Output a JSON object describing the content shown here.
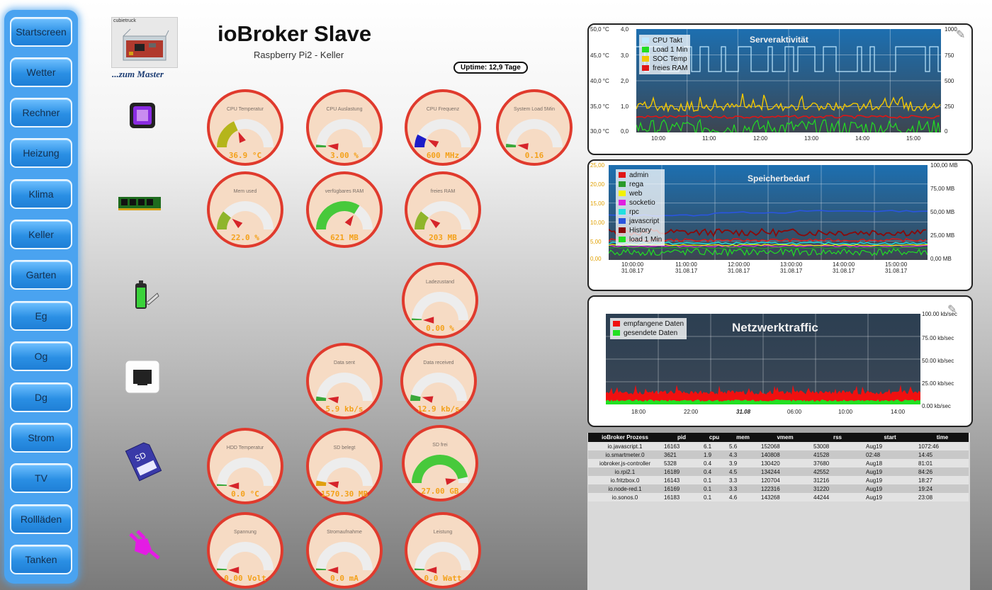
{
  "nav": [
    {
      "label": "Startscreen"
    },
    {
      "label": "Wetter"
    },
    {
      "label": "Rechner"
    },
    {
      "label": "Heizung"
    },
    {
      "label": "Klima"
    },
    {
      "label": "Keller"
    },
    {
      "label": "Garten"
    },
    {
      "label": "Eg"
    },
    {
      "label": "Og"
    },
    {
      "label": "Dg"
    },
    {
      "label": "Strom"
    },
    {
      "label": "TV"
    },
    {
      "label": "Rollläden"
    },
    {
      "label": "Tanken"
    }
  ],
  "header": {
    "logo_caption": "cubietruck",
    "logo_subtitle": "...zum Master",
    "title": "ioBroker Slave",
    "subtitle": "Raspberry Pi2 - Keller",
    "uptime": "Uptime: 12,9 Tage"
  },
  "gauges": {
    "cpu_temp": {
      "label": "CPU Temperatur",
      "value": "36.9 °C",
      "level": 0.37,
      "color": "#b5b51b"
    },
    "cpu_load": {
      "label": "CPU Auslastung",
      "value": "3.00 %",
      "level": 0.03,
      "color": "#3aa83a"
    },
    "cpu_freq": {
      "label": "CPU Frequenz",
      "value": "600 MHz",
      "level": 0.15,
      "color": "#1c1cc8"
    },
    "sys_load": {
      "label": "System Load 5Min",
      "value": "0.16",
      "level": 0.04,
      "color": "#3aa83a"
    },
    "mem_used": {
      "label": "Mem used",
      "value": "22.0 %",
      "level": 0.22,
      "color": "#8fb52b"
    },
    "ram_avail": {
      "label": "verfügbares RAM",
      "value": "621 MB",
      "level": 0.68,
      "color": "#47c93b"
    },
    "ram_free": {
      "label": "freies RAM",
      "value": "203 MB",
      "level": 0.22,
      "color": "#8fb52b"
    },
    "battery": {
      "label": "Ladezustand",
      "value": "0.00 %",
      "level": 0.0,
      "color": "#3aa83a"
    },
    "data_sent": {
      "label": "Data sent",
      "value": "5.9 kb/s",
      "level": 0.05,
      "color": "#3aa83a"
    },
    "data_recv": {
      "label": "Data received",
      "value": "12.9 kb/s",
      "level": 0.07,
      "color": "#3aa83a"
    },
    "hdd_temp": {
      "label": "HDD Temperatur",
      "value": "0.0 °C",
      "level": 0.0,
      "color": "#3aa83a"
    },
    "sd_used": {
      "label": "SD belegt",
      "value": "1570.30 MB",
      "level": 0.06,
      "color": "#e0a010"
    },
    "sd_free": {
      "label": "SD frei",
      "value": "27.00 GB",
      "level": 0.93,
      "color": "#47c93b"
    },
    "voltage": {
      "label": "Spannung",
      "value": "0.00 Volt",
      "level": 0.0,
      "color": "#3aa83a"
    },
    "current": {
      "label": "Stromaufnahme",
      "value": "0.0 mA",
      "level": 0.0,
      "color": "#3aa83a"
    },
    "power": {
      "label": "Leistung",
      "value": "0.0 Watt",
      "level": 0.0,
      "color": "#3aa83a"
    }
  },
  "chart1": {
    "title": "Serveraktivität",
    "legend": [
      {
        "name": "CPU Takt",
        "color": "#bfe8ff"
      },
      {
        "name": "Load 1 Min",
        "color": "#22dd22"
      },
      {
        "name": "SOC Temp",
        "color": "#f2c700"
      },
      {
        "name": "freies RAM",
        "color": "#e01515"
      }
    ],
    "y_left1": [
      "50,0 °C",
      "45,0 °C",
      "40,0 °C",
      "35,0 °C",
      "30,0 °C"
    ],
    "y_left2": [
      "4,0",
      "3,0",
      "2,0",
      "1,0",
      "0,0"
    ],
    "y_right": [
      "1000",
      "750",
      "500",
      "250",
      "0"
    ],
    "x": [
      "10:00",
      "11:00",
      "12:00",
      "13:00",
      "14:00",
      "15:00"
    ]
  },
  "chart2": {
    "title": "Speicherbedarf",
    "legend": [
      {
        "name": "admin",
        "color": "#e01515"
      },
      {
        "name": "rega",
        "color": "#2a9a2a"
      },
      {
        "name": "web",
        "color": "#f2f200"
      },
      {
        "name": "socketio",
        "color": "#e020e0"
      },
      {
        "name": "rpc",
        "color": "#22e0e0"
      },
      {
        "name": "javascript",
        "color": "#2a55e0"
      },
      {
        "name": "History",
        "color": "#8a0a0a"
      },
      {
        "name": "load 1 Min",
        "color": "#22dd22"
      }
    ],
    "y_left": [
      "25,00",
      "20,00",
      "15,00",
      "10,00",
      "5,00",
      "0,00"
    ],
    "y_right": [
      "100,00 MB",
      "75,00 MB",
      "50,00 MB",
      "25,00 MB",
      "0,00 MB"
    ],
    "x": [
      {
        "t": "10:00:00",
        "d": "31.08.17"
      },
      {
        "t": "11:00:00",
        "d": "31.08.17"
      },
      {
        "t": "12:00:00",
        "d": "31.08.17"
      },
      {
        "t": "13:00:00",
        "d": "31.08.17"
      },
      {
        "t": "14:00:00",
        "d": "31.08.17"
      },
      {
        "t": "15:00:00",
        "d": "31.08.17"
      }
    ]
  },
  "chart3": {
    "title": "Netzwerktraffic",
    "legend": [
      {
        "name": "empfangene Daten",
        "color": "#f01010"
      },
      {
        "name": "gesendete Daten",
        "color": "#22e022"
      }
    ],
    "y_right": [
      "100.00 kb/sec",
      "75.00 kb/sec",
      "50.00 kb/sec",
      "25.00 kb/sec",
      "0.00 kb/sec"
    ],
    "x": [
      "18:00",
      "22:00",
      "31.08",
      "06:00",
      "10:00",
      "14:00"
    ]
  },
  "process_table": {
    "headers": [
      "ioBroker Prozess",
      "pid",
      "cpu",
      "mem",
      "vmem",
      "rss",
      "start",
      "time"
    ],
    "rows": [
      [
        "io.javascript.1",
        "16163",
        "6.1",
        "5.6",
        "152068",
        "53008",
        "Aug19",
        "1072:46"
      ],
      [
        "io.smartmeter.0",
        "3621",
        "1.9",
        "4.3",
        "140808",
        "41528",
        "02:48",
        "14:45"
      ],
      [
        "iobroker.js-controller",
        "5328",
        "0.4",
        "3.9",
        "130420",
        "37680",
        "Aug18",
        "81:01"
      ],
      [
        "io.rpi2.1",
        "16189",
        "0.4",
        "4.5",
        "134244",
        "42552",
        "Aug19",
        "84:26"
      ],
      [
        "io.fritzbox.0",
        "16143",
        "0.1",
        "3.3",
        "120704",
        "31216",
        "Aug19",
        "18:27"
      ],
      [
        "io.node-red.1",
        "16169",
        "0.1",
        "3.3",
        "122316",
        "31220",
        "Aug19",
        "19:24"
      ],
      [
        "io.sonos.0",
        "16183",
        "0.1",
        "4.6",
        "143268",
        "44244",
        "Aug19",
        "23:08"
      ]
    ]
  }
}
